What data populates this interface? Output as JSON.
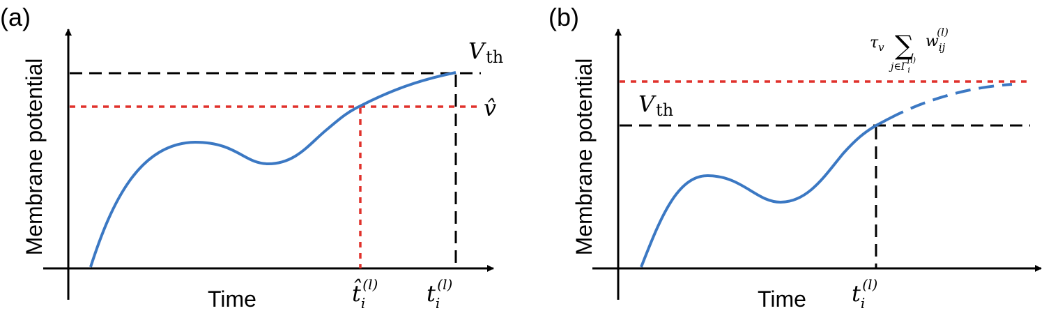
{
  "panels": [
    {
      "label": "(a)",
      "ylabel": "Membrane potential",
      "xlabel": "Time",
      "threshold_label": {
        "sym": "V",
        "sub": "th"
      },
      "vhat_label": "𝑣̂",
      "t_hat_label": {
        "sym": "t̂",
        "sub": "i",
        "sup": "(l)"
      },
      "t_label": {
        "sym": "t",
        "sub": "i",
        "sup": "(l)"
      }
    },
    {
      "label": "(b)",
      "ylabel": "Membrane potential",
      "xlabel": "Time",
      "threshold_label": {
        "sym": "V",
        "sub": "th"
      },
      "sum_label": {
        "tau": "τ",
        "tau_sub": "v",
        "sigma": "∑",
        "w": "w",
        "w_sub": "ij",
        "w_sup": "(l)",
        "under": "j∈Γ",
        "under_sub": "i",
        "under_sup": "(l)"
      },
      "t_label": {
        "sym": "t",
        "sub": "i",
        "sup": "(l)"
      }
    }
  ],
  "colors": {
    "curve": "#3b78c3",
    "red_dashed": "#e0312b",
    "black_dashed": "#000000",
    "axis": "#000000"
  }
}
